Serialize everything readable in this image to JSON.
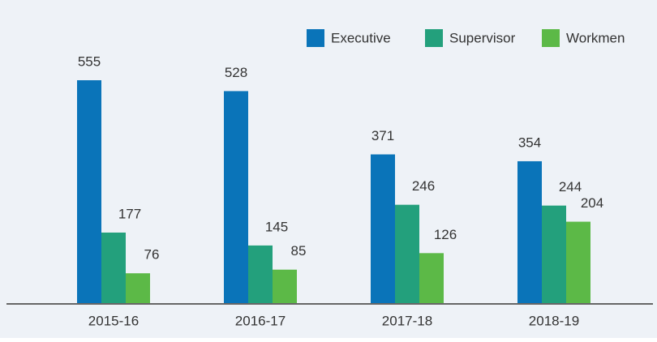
{
  "chart_data": {
    "type": "bar",
    "categories": [
      "2015-16",
      "2016-17",
      "2017-18",
      "2018-19"
    ],
    "series": [
      {
        "name": "Executive",
        "color": "#0a74b9",
        "values": [
          555,
          528,
          371,
          354
        ]
      },
      {
        "name": "Supervisor",
        "color": "#23a07c",
        "values": [
          177,
          145,
          246,
          244
        ]
      },
      {
        "name": "Workmen",
        "color": "#5cb947",
        "values": [
          76,
          85,
          126,
          204
        ]
      }
    ],
    "legend": "top-right"
  }
}
